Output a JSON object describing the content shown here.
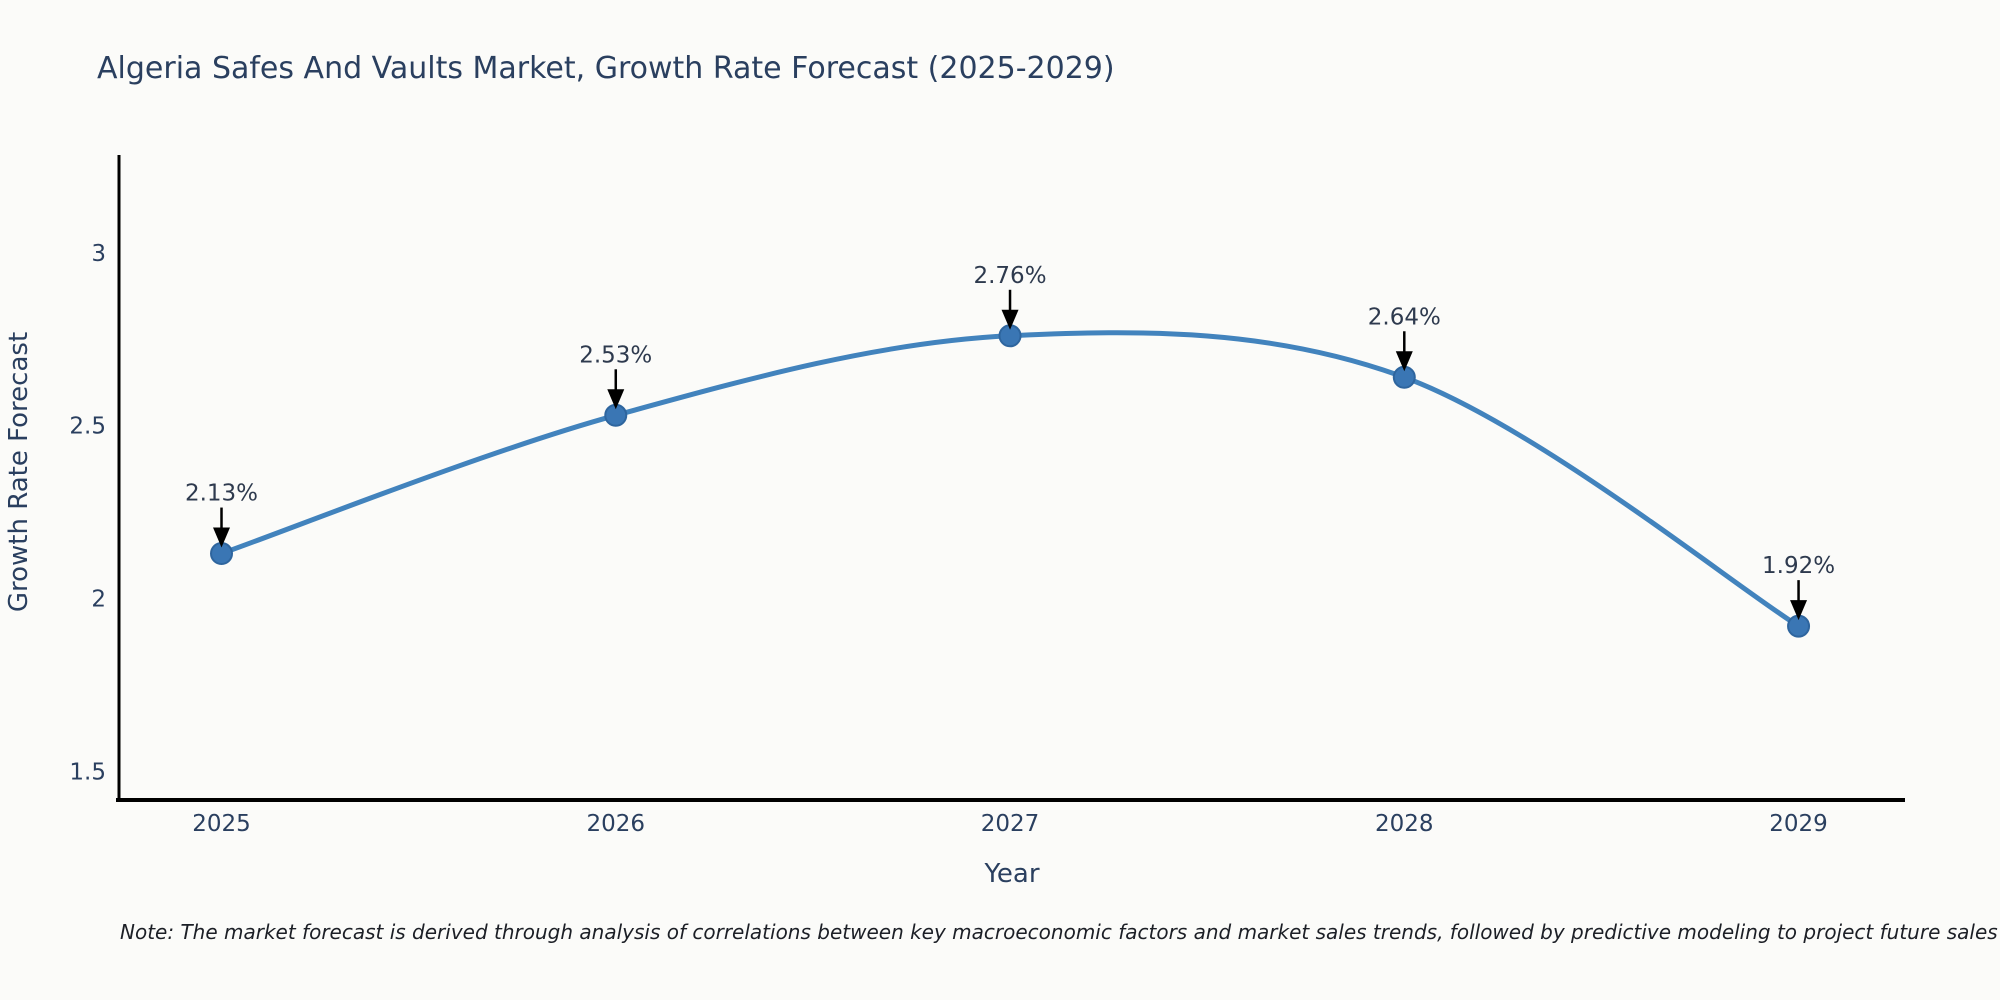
{
  "title": "Algeria Safes And Vaults Market, Growth Rate Forecast (2025-2029)",
  "note": "Note: The market forecast is derived through analysis of correlations between key macroeconomic factors and market sales trends, followed by predictive modeling to project future sales",
  "chart_data": {
    "type": "line",
    "title": "Algeria Safes And Vaults Market, Growth Rate Forecast (2025-2029)",
    "xlabel": "Year",
    "ylabel": "Growth Rate Forecast",
    "x": [
      2025,
      2026,
      2027,
      2028,
      2029
    ],
    "series": [
      {
        "name": "Growth Rate Forecast",
        "values": [
          2.13,
          2.53,
          2.76,
          2.64,
          1.92
        ],
        "point_labels": [
          "2.13%",
          "2.53%",
          "2.76%",
          "2.64%",
          "1.92%"
        ]
      }
    ],
    "x_ticks": [
      "2025",
      "2026",
      "2027",
      "2028",
      "2029"
    ],
    "y_ticks": [
      "1.5",
      "2",
      "2.5",
      "3"
    ],
    "y_tick_values": [
      1.5,
      2.0,
      2.5,
      3.0
    ],
    "xlim": [
      2024.74,
      2029.27
    ],
    "ylim": [
      1.417,
      3.283
    ],
    "line_shape": "spline",
    "grid": false,
    "legend_position": "none",
    "colors": {
      "line": "#4283bd",
      "marker_fill": "#3a76b4",
      "marker_edge": "#2e659e",
      "axis_line": "#000000",
      "arrow": "#000000",
      "text": "#2a3f5f",
      "background": "#fbfbf9"
    }
  }
}
